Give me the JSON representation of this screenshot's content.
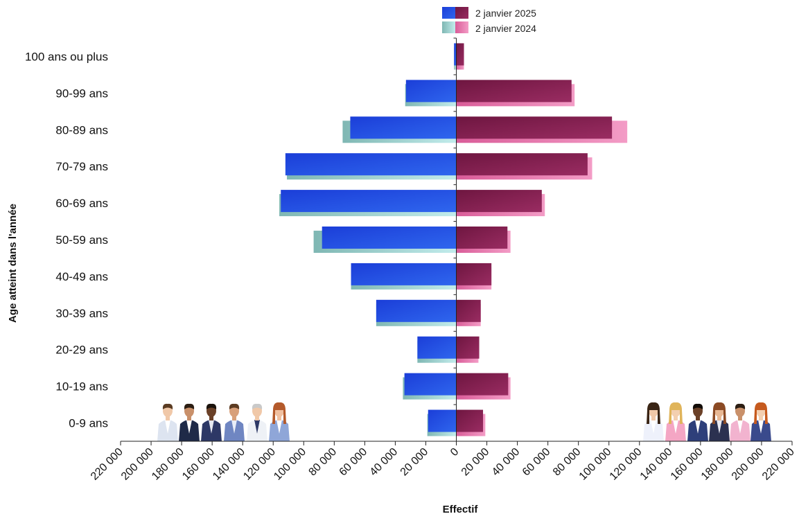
{
  "chart_data": {
    "type": "bar",
    "orientation": "horizontal",
    "layout": "population-pyramid",
    "categories": [
      "0-9 ans",
      "10-19 ans",
      "20-29 ans",
      "30-39 ans",
      "40-49 ans",
      "50-59 ans",
      "60-69 ans",
      "70-79 ans",
      "80-89 ans",
      "90-99 ans",
      "100 ans ou plus"
    ],
    "series": [
      {
        "name": "2 janvier 2025",
        "side": "left",
        "values": [
          18500,
          34000,
          25500,
          52500,
          69000,
          88000,
          115000,
          112000,
          69500,
          33000,
          1500
        ]
      },
      {
        "name": "2 janvier 2025",
        "side": "right",
        "values": [
          17500,
          34000,
          15000,
          16000,
          23000,
          33500,
          56000,
          86000,
          102000,
          75500,
          5000
        ]
      },
      {
        "name": "2 janvier 2024",
        "side": "left",
        "values": [
          19000,
          35000,
          25500,
          52500,
          69000,
          93500,
          116000,
          111000,
          74500,
          33500,
          1500
        ]
      },
      {
        "name": "2 janvier 2024",
        "side": "right",
        "values": [
          19000,
          35500,
          14500,
          16000,
          23000,
          35500,
          58000,
          89000,
          112000,
          77500,
          5000
        ]
      }
    ],
    "xlabel": "Effectif",
    "ylabel": "Age atteint dans l'année",
    "xlim": [
      -220000,
      220000
    ],
    "x_ticks": [
      -220000,
      -200000,
      -180000,
      -160000,
      -140000,
      -120000,
      -100000,
      -80000,
      -60000,
      -40000,
      -20000,
      0,
      20000,
      40000,
      60000,
      80000,
      100000,
      120000,
      140000,
      160000,
      180000,
      200000,
      220000
    ],
    "x_tick_labels": [
      "220 000",
      "200 000",
      "180 000",
      "160 000",
      "140 000",
      "120 000",
      "100 000",
      "80 000",
      "60 000",
      "40 000",
      "20 000",
      "0",
      "20 000",
      "40 000",
      "60 000",
      "80 000",
      "100 000",
      "120 000",
      "140 000",
      "160 000",
      "180 000",
      "200 000",
      "220 000"
    ],
    "legend": {
      "position": "top-center",
      "entries": [
        "2 janvier 2025",
        "2 janvier 2024"
      ]
    },
    "grid": false,
    "colors": {
      "left_2025_dark": "#1b3ed8",
      "left_2025_light": "#2f66ee",
      "left_2024_dark": "#7fb7b3",
      "left_2024_light": "#c2ecec",
      "right_2025_dark": "#7a1a46",
      "right_2025_light": "#9a2c62",
      "right_2024_dark": "#d95c98",
      "right_2024_light": "#f39cc6"
    },
    "decorations": {
      "left": "illustration of six men",
      "right": "illustration of six women"
    }
  }
}
